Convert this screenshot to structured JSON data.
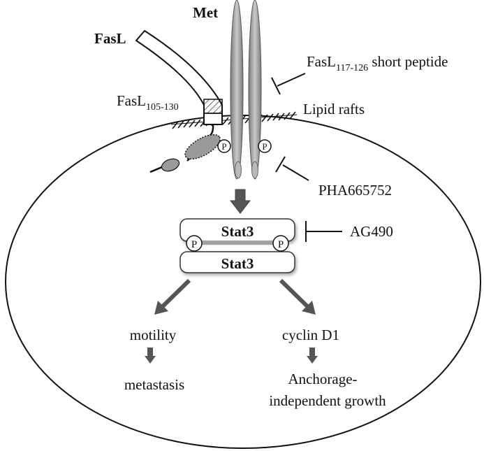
{
  "labels": {
    "fasl": "FasL",
    "met": "Met",
    "fasl_peptide_main": "FasL",
    "fasl_peptide_sub": "117-126",
    "fasl_peptide_rest": " short peptide",
    "fasl_region_main": "FasL",
    "fasl_region_sub": "105-130",
    "lipid_rafts": "Lipid rafts",
    "pha": "PHA665752",
    "stat3_top": "Stat3",
    "stat3_bottom": "Stat3",
    "ag490": "AG490",
    "phospho": "P",
    "motility": "motility",
    "metastasis": "metastasis",
    "cyclin": "cyclin D1",
    "anchorage_line1": "Anchorage-",
    "anchorage_line2": "independent growth"
  },
  "colors": {
    "receptor_gray": "#a8a8a8",
    "arrow_gray": "#555555",
    "adapter_gray": "#999999",
    "stroke": "#111111"
  },
  "icons": {
    "inhibition": "T-bar-inhibitor",
    "activation": "block-arrow"
  }
}
